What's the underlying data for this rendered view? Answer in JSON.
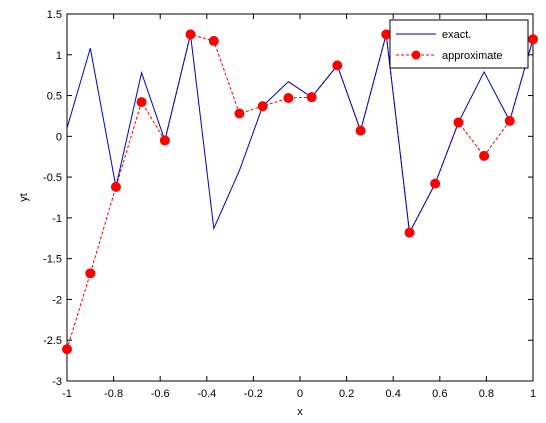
{
  "chart_data": {
    "type": "line",
    "title": "",
    "xlabel": "x",
    "ylabel": "yt",
    "xlim": [
      -1,
      1
    ],
    "ylim": [
      -3,
      1.5
    ],
    "xticks": [
      "-1",
      "-0.8",
      "-0.6",
      "-0.4",
      "-0.2",
      "0",
      "0.2",
      "0.4",
      "0.6",
      "0.8",
      "1"
    ],
    "xtick_values": [
      -1,
      -0.8,
      -0.6,
      -0.4,
      -0.2,
      0,
      0.2,
      0.4,
      0.6,
      0.8,
      1
    ],
    "yticks": [
      "1.5",
      "1",
      "0.5",
      "0",
      "-0.5",
      "-1",
      "-1.5",
      "-2",
      "-2.5",
      "-3"
    ],
    "ytick_values": [
      1.5,
      1,
      0.5,
      0,
      -0.5,
      -1,
      -1.5,
      -2,
      -2.5,
      -3
    ],
    "grid": false,
    "legend_position": "top-right",
    "series": [
      {
        "name": "exact.",
        "color": "#0000c8",
        "style": "solid",
        "marker": "none",
        "x": [
          -1,
          -0.9,
          -0.79,
          -0.68,
          -0.58,
          -0.47,
          -0.37,
          -0.26,
          -0.16,
          -0.05,
          0.05,
          0.16,
          0.26,
          0.37,
          0.47,
          0.58,
          0.68,
          0.79,
          0.9,
          1
        ],
        "y": [
          0.1,
          1.08,
          -0.62,
          0.78,
          -0.05,
          1.25,
          -1.13,
          -0.42,
          0.37,
          0.67,
          0.48,
          0.87,
          0.07,
          1.25,
          -1.18,
          -0.58,
          0.17,
          0.79,
          0.19,
          1.19
        ]
      },
      {
        "name": "approximate",
        "color": "#ff0000",
        "style": "dashed",
        "marker": "circle",
        "x": [
          -1,
          -0.9,
          -0.79,
          -0.68,
          -0.58,
          -0.47,
          -0.37,
          -0.26,
          -0.16,
          -0.05,
          0.05,
          0.16,
          0.26,
          0.37,
          0.47,
          0.58,
          0.68,
          0.79,
          0.9,
          1
        ],
        "y": [
          -2.61,
          -1.68,
          -0.62,
          0.42,
          -0.05,
          1.25,
          1.17,
          0.28,
          0.37,
          0.47,
          0.48,
          0.87,
          0.07,
          1.25,
          -1.18,
          -0.58,
          0.17,
          -0.24,
          0.19,
          1.19
        ]
      }
    ]
  }
}
